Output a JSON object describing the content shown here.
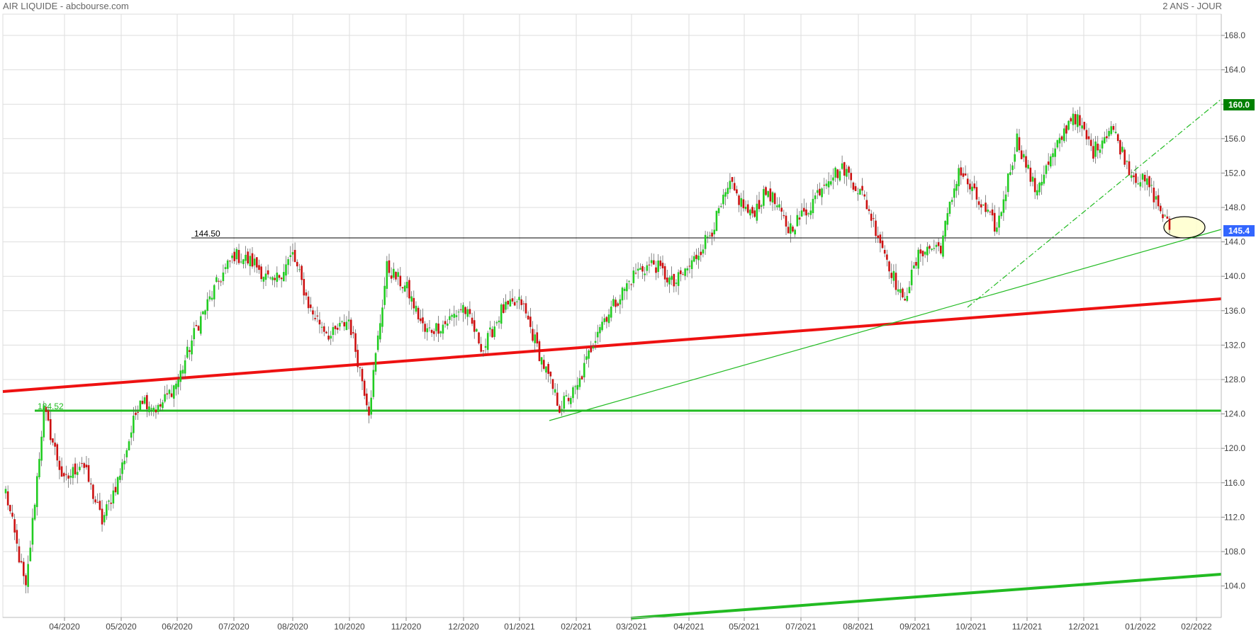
{
  "header": {
    "title": "AIR LIQUIDE - abcbourse.com",
    "period": "2 ANS - JOUR"
  },
  "chart_data": {
    "type": "candlestick",
    "title": "AIR LIQUIDE - abcbourse.com",
    "period": "2 ANS - JOUR",
    "y_ticks": [
      104.0,
      108.0,
      112.0,
      116.0,
      120.0,
      124.0,
      128.0,
      132.0,
      136.0,
      140.0,
      144.0,
      148.0,
      152.0,
      156.0,
      160.0,
      164.0,
      168.0
    ],
    "y_tick_labels": [
      "104.0",
      "108.0",
      "112.0",
      "116.0",
      "120.0",
      "124.0",
      "128.0",
      "132.0",
      "136.0",
      "140.0",
      "144.0",
      "148.0",
      "152.0",
      "156.0",
      "160.0",
      "164.0",
      "168.0"
    ],
    "x_tick_labels": [
      "04/2020",
      "05/2020",
      "06/2020",
      "07/2020",
      "08/2020",
      "10/2020",
      "11/2020",
      "12/2020",
      "01/2021",
      "02/2021",
      "03/2021",
      "04/2021",
      "05/2021",
      "07/2021",
      "08/2021",
      "09/2021",
      "10/2021",
      "11/2021",
      "12/2021",
      "01/2022",
      "02/2022"
    ],
    "badges": [
      {
        "label": "160.0",
        "value": 160.0,
        "color": "#008000"
      },
      {
        "label": "145.4",
        "value": 145.4,
        "color": "#3366ff"
      }
    ],
    "annotations": [
      {
        "label": "144.50",
        "value": 144.5,
        "color": "#000000"
      },
      {
        "label": "124.52",
        "value": 124.52,
        "color": "#22bb22"
      }
    ],
    "colors": {
      "up": "#22cc22",
      "down": "#cc1111",
      "grid": "#dddddd"
    },
    "grid": true,
    "price_path": [
      [
        "03/2020",
        115.0
      ],
      [
        "03/2020",
        103.5
      ],
      [
        "04/2020",
        124.5
      ],
      [
        "04/2020",
        116.0
      ],
      [
        "05/2020",
        118.5
      ],
      [
        "05/2020",
        111.5
      ],
      [
        "05/2020",
        117.0
      ],
      [
        "06/2020",
        126.0
      ],
      [
        "06/2020",
        124.5
      ],
      [
        "06/2020",
        128.0
      ],
      [
        "07/2020",
        134.0
      ],
      [
        "07/2020",
        139.0
      ],
      [
        "07/2020",
        142.5
      ],
      [
        "08/2020",
        141.5
      ],
      [
        "08/2020",
        139.0
      ],
      [
        "09/2020",
        142.5
      ],
      [
        "09/2020",
        136.0
      ],
      [
        "10/2020",
        133.0
      ],
      [
        "10/2020",
        135.0
      ],
      [
        "10/2020",
        124.5
      ],
      [
        "11/2020",
        141.0
      ],
      [
        "11/2020",
        138.5
      ],
      [
        "12/2020",
        133.5
      ],
      [
        "12/2020",
        134.5
      ],
      [
        "01/2021",
        136.5
      ],
      [
        "01/2021",
        131.5
      ],
      [
        "01/2021",
        136.0
      ],
      [
        "02/2021",
        137.0
      ],
      [
        "02/2021",
        131.0
      ],
      [
        "02/2021",
        124.8
      ],
      [
        "02/2021",
        127.0
      ],
      [
        "03/2021",
        134.0
      ],
      [
        "03/2021",
        137.0
      ],
      [
        "04/2021",
        140.5
      ],
      [
        "04/2021",
        141.5
      ],
      [
        "05/2021",
        139.0
      ],
      [
        "05/2021",
        141.5
      ],
      [
        "06/2021",
        145.5
      ],
      [
        "06/2021",
        150.5
      ],
      [
        "07/2021",
        147.0
      ],
      [
        "07/2021",
        150.0
      ],
      [
        "08/2021",
        145.5
      ],
      [
        "08/2021",
        147.5
      ],
      [
        "08/2021",
        151.5
      ],
      [
        "09/2021",
        152.5
      ],
      [
        "09/2021",
        149.0
      ],
      [
        "10/2021",
        143.5
      ],
      [
        "10/2021",
        137.0
      ],
      [
        "10/2021",
        143.0
      ],
      [
        "11/2021",
        143.5
      ],
      [
        "11/2021",
        152.5
      ],
      [
        "11/2021",
        148.5
      ],
      [
        "12/2021",
        145.5
      ],
      [
        "12/2021",
        156.0
      ],
      [
        "12/2021",
        150.0
      ],
      [
        "12/2021",
        154.5
      ],
      [
        "01/2022",
        159.0
      ],
      [
        "01/2022",
        154.5
      ],
      [
        "01/2022",
        157.5
      ],
      [
        "01/2022",
        152.0
      ],
      [
        "02/2022",
        150.5
      ],
      [
        "02/2022",
        145.4
      ]
    ]
  }
}
